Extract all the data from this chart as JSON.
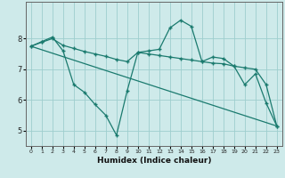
{
  "xlabel": "Humidex (Indice chaleur)",
  "bg_color": "#ceeaea",
  "grid_color": "#9ecece",
  "line_color": "#1a7a6e",
  "xlim": [
    -0.5,
    23.5
  ],
  "ylim": [
    4.5,
    9.2
  ],
  "yticks": [
    5,
    6,
    7,
    8
  ],
  "xticks": [
    0,
    1,
    2,
    3,
    4,
    5,
    6,
    7,
    8,
    9,
    10,
    11,
    12,
    13,
    14,
    15,
    16,
    17,
    18,
    19,
    20,
    21,
    22,
    23
  ],
  "line1_x": [
    0,
    1,
    2,
    3,
    4,
    5,
    6,
    7,
    8,
    9,
    10,
    11,
    12,
    13,
    14,
    15,
    16,
    17,
    18,
    19,
    20,
    21,
    22,
    23
  ],
  "line1_y": [
    7.75,
    7.9,
    8.05,
    7.6,
    6.5,
    6.25,
    5.85,
    5.5,
    4.85,
    6.3,
    7.55,
    7.6,
    7.65,
    8.35,
    8.6,
    8.4,
    7.25,
    7.4,
    7.35,
    7.1,
    6.5,
    6.85,
    5.9,
    5.15
  ],
  "line2_x": [
    0,
    1,
    2,
    3,
    4,
    5,
    6,
    7,
    8,
    9,
    10,
    11,
    12,
    13,
    14,
    15,
    16,
    17,
    18,
    19,
    20,
    21,
    22,
    23
  ],
  "line2_y": [
    7.75,
    7.88,
    8.0,
    7.78,
    7.68,
    7.58,
    7.5,
    7.42,
    7.32,
    7.25,
    7.55,
    7.5,
    7.45,
    7.4,
    7.35,
    7.3,
    7.25,
    7.2,
    7.18,
    7.1,
    7.05,
    7.0,
    6.5,
    5.15
  ],
  "line3_x": [
    0,
    23
  ],
  "line3_y": [
    7.75,
    5.15
  ],
  "markersize": 3,
  "linewidth": 0.9
}
